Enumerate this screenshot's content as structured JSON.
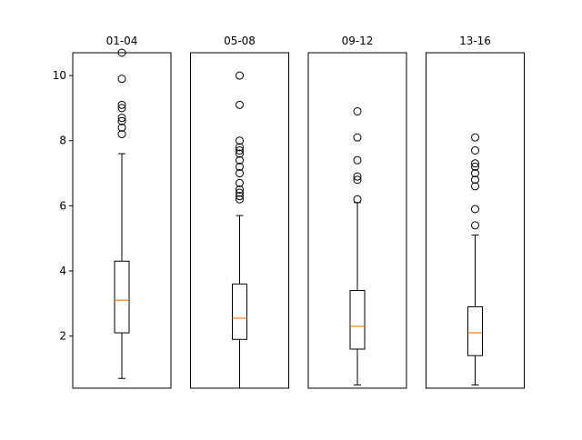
{
  "chart_data": {
    "type": "boxplot",
    "layout": "four side-by-side subplots sharing the y axis",
    "ylim": [
      0.4,
      10.7
    ],
    "yticks": [
      2,
      4,
      6,
      8,
      10
    ],
    "grid": false,
    "colors": {
      "box": "#000000",
      "median": "#ff7f0e",
      "flier": "#000000",
      "frame": "#000000",
      "background": "#ffffff"
    },
    "panels": [
      {
        "title": "01-04",
        "whisker_low": 0.7,
        "q1": 2.1,
        "median": 3.1,
        "q3": 4.3,
        "whisker_high": 7.6,
        "fliers": [
          8.2,
          8.4,
          8.6,
          8.7,
          9.0,
          9.1,
          9.9,
          10.7
        ]
      },
      {
        "title": "05-08",
        "whisker_low": 0.4,
        "q1": 1.9,
        "median": 2.55,
        "q3": 3.6,
        "whisker_high": 5.7,
        "fliers": [
          6.2,
          6.3,
          6.4,
          6.5,
          6.7,
          7.0,
          7.2,
          7.4,
          7.6,
          7.7,
          7.8,
          8.0,
          9.1,
          10.0
        ]
      },
      {
        "title": "09-12",
        "whisker_low": 0.5,
        "q1": 1.6,
        "median": 2.3,
        "q3": 3.4,
        "whisker_high": 6.1,
        "fliers": [
          6.2,
          6.8,
          6.9,
          7.4,
          8.1,
          8.9
        ]
      },
      {
        "title": "13-16",
        "whisker_low": 0.5,
        "q1": 1.4,
        "median": 2.1,
        "q3": 2.9,
        "whisker_high": 5.1,
        "fliers": [
          5.4,
          5.9,
          6.6,
          6.8,
          7.0,
          7.2,
          7.3,
          7.7,
          8.1
        ]
      }
    ]
  }
}
